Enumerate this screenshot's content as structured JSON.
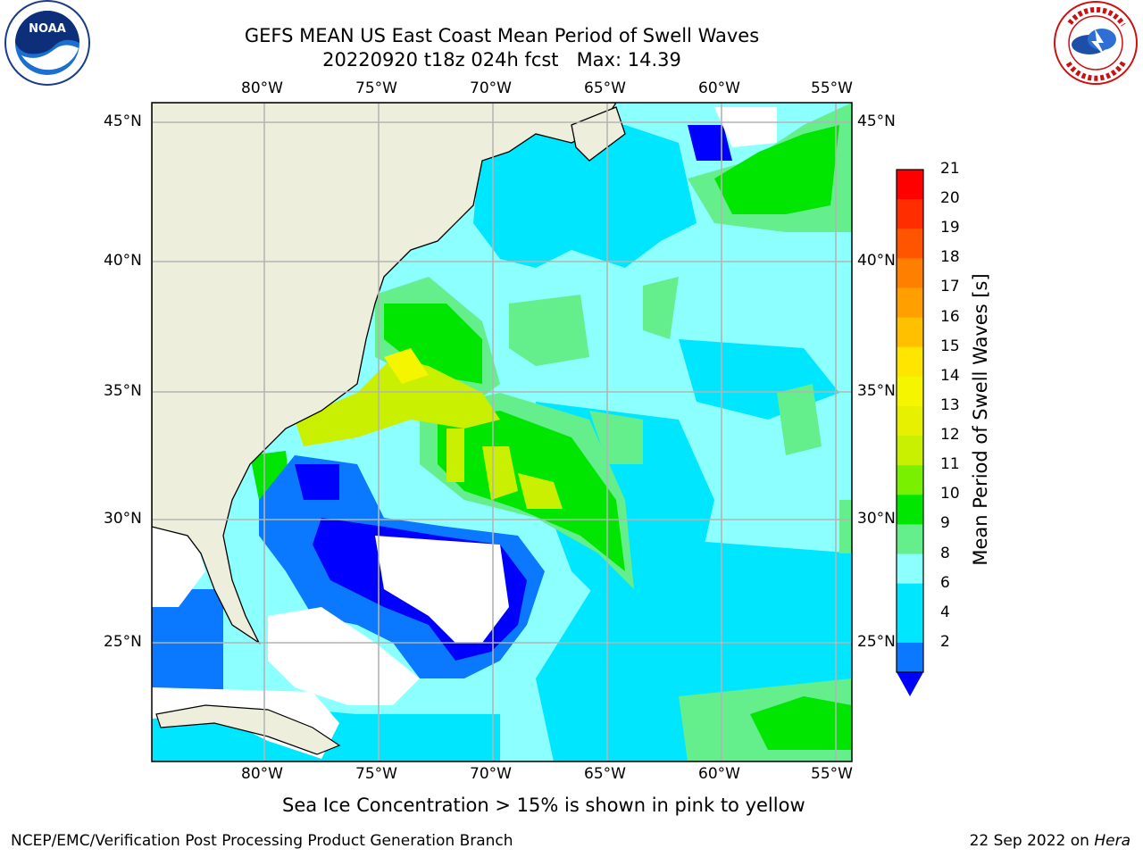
{
  "title": {
    "line1": "GEFS MEAN US East Coast Mean Period of Swell Waves",
    "line2": "20220920 t18z 024h fcst   Max: 14.39"
  },
  "logos": {
    "left_name": "NOAA",
    "right_name": "NATIONAL WEATHER SERVICE"
  },
  "map": {
    "lon_labels": [
      "80°W",
      "75°W",
      "70°W",
      "65°W",
      "60°W",
      "55°W"
    ],
    "lat_labels": [
      "45°N",
      "40°N",
      "35°N",
      "30°N",
      "25°N"
    ],
    "land_color": "#eeeedc",
    "ocean_colors": {
      "2-4": "#0000ff",
      "4-6": "#0a78ff",
      "6-8": "#00e6ff",
      "8-9": "#8cffff",
      "9-10": "#64ee8c",
      "10-11": "#00e600",
      "11-12": "#78f000",
      "12-13": "#c8f000",
      "13-14": "#e6f000",
      "14-15": "#f5f500"
    }
  },
  "colorbar": {
    "label": "Mean Period of Swell Waves [s]",
    "ticks": [
      "21",
      "20",
      "19",
      "18",
      "17",
      "16",
      "15",
      "14",
      "13",
      "12",
      "11",
      "10",
      "9",
      "8",
      "6",
      "4",
      "2"
    ],
    "colors": [
      "#ff0000",
      "#ff2d00",
      "#ff5500",
      "#ff8000",
      "#ffa000",
      "#ffc000",
      "#ffe600",
      "#f5f500",
      "#e6f000",
      "#c8f000",
      "#78f000",
      "#00e600",
      "#64ee8c",
      "#8cffff",
      "#00e6ff",
      "#00e6ff",
      "#0a78ff"
    ],
    "extend_color": "#0000ff"
  },
  "note": "Sea Ice Concentration > 15% is shown in pink to yellow",
  "footer": {
    "left": "NCEP/EMC/Verification Post Processing Product Generation Branch",
    "right_prefix": "22 Sep 2022 on ",
    "right_italic": "Hera"
  }
}
